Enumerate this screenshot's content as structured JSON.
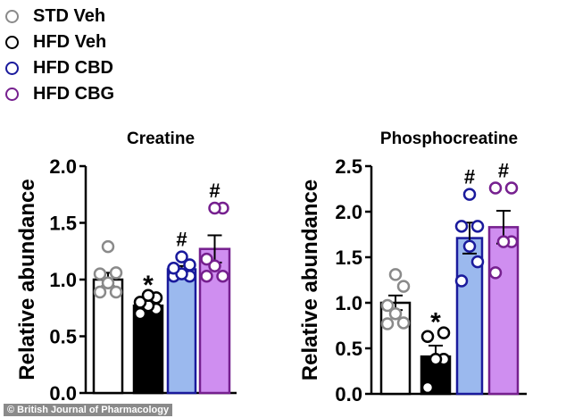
{
  "legend": [
    {
      "label": "STD Veh",
      "stroke": "#8a8a8a",
      "fill": "#ffffff"
    },
    {
      "label": "HFD Veh",
      "stroke": "#000000",
      "fill": "#000000"
    },
    {
      "label": "HFD CBD",
      "stroke": "#1a1a9c",
      "fill": "#9bb9ee"
    },
    {
      "label": "HFD CBG",
      "stroke": "#76208f",
      "fill": "#cf8ef0"
    }
  ],
  "credit": "© British Journal of Pharmacology",
  "chart_data": [
    {
      "type": "bar",
      "title": "Creatine",
      "ylabel": "Relative abundance",
      "ylim": [
        0,
        2.0
      ],
      "yticks": [
        "0.0",
        "0.5",
        "1.0",
        "1.5",
        "2.0"
      ],
      "categories": [
        "STD Veh",
        "HFD Veh",
        "HFD CBD",
        "HFD CBG"
      ],
      "values": [
        1.0,
        0.77,
        1.09,
        1.27
      ],
      "sem": [
        0.06,
        0.03,
        0.03,
        0.12
      ],
      "points": [
        [
          0.89,
          0.89,
          0.97,
          1.05,
          1.06,
          1.29
        ],
        [
          0.7,
          0.74,
          0.77,
          0.8,
          0.84,
          0.86
        ],
        [
          1.03,
          1.03,
          1.05,
          1.1,
          1.13,
          1.2
        ],
        [
          1.03,
          1.03,
          1.12,
          1.18,
          1.63,
          1.63
        ]
      ],
      "annotations": [
        "",
        "*",
        "#",
        "#"
      ]
    },
    {
      "type": "bar",
      "title": "Phosphocreatine",
      "ylabel": "Relative abundance",
      "ylim": [
        0,
        2.5
      ],
      "yticks": [
        "0.0",
        "0.5",
        "1.0",
        "1.5",
        "2.0",
        "2.5"
      ],
      "categories": [
        "STD Veh",
        "HFD Veh",
        "HFD CBD",
        "HFD CBG"
      ],
      "values": [
        1.0,
        0.41,
        1.71,
        1.83
      ],
      "sem": [
        0.08,
        0.12,
        0.17,
        0.18
      ],
      "points": [
        [
          0.77,
          0.78,
          0.88,
          0.97,
          1.18,
          1.31
        ],
        [
          0.07,
          0.38,
          0.38,
          0.63,
          0.67
        ],
        [
          1.24,
          1.45,
          1.62,
          1.84,
          1.84,
          2.19
        ],
        [
          1.33,
          1.67,
          1.67,
          2.26,
          2.26
        ]
      ],
      "annotations": [
        "",
        "*",
        "#",
        "#"
      ]
    }
  ]
}
